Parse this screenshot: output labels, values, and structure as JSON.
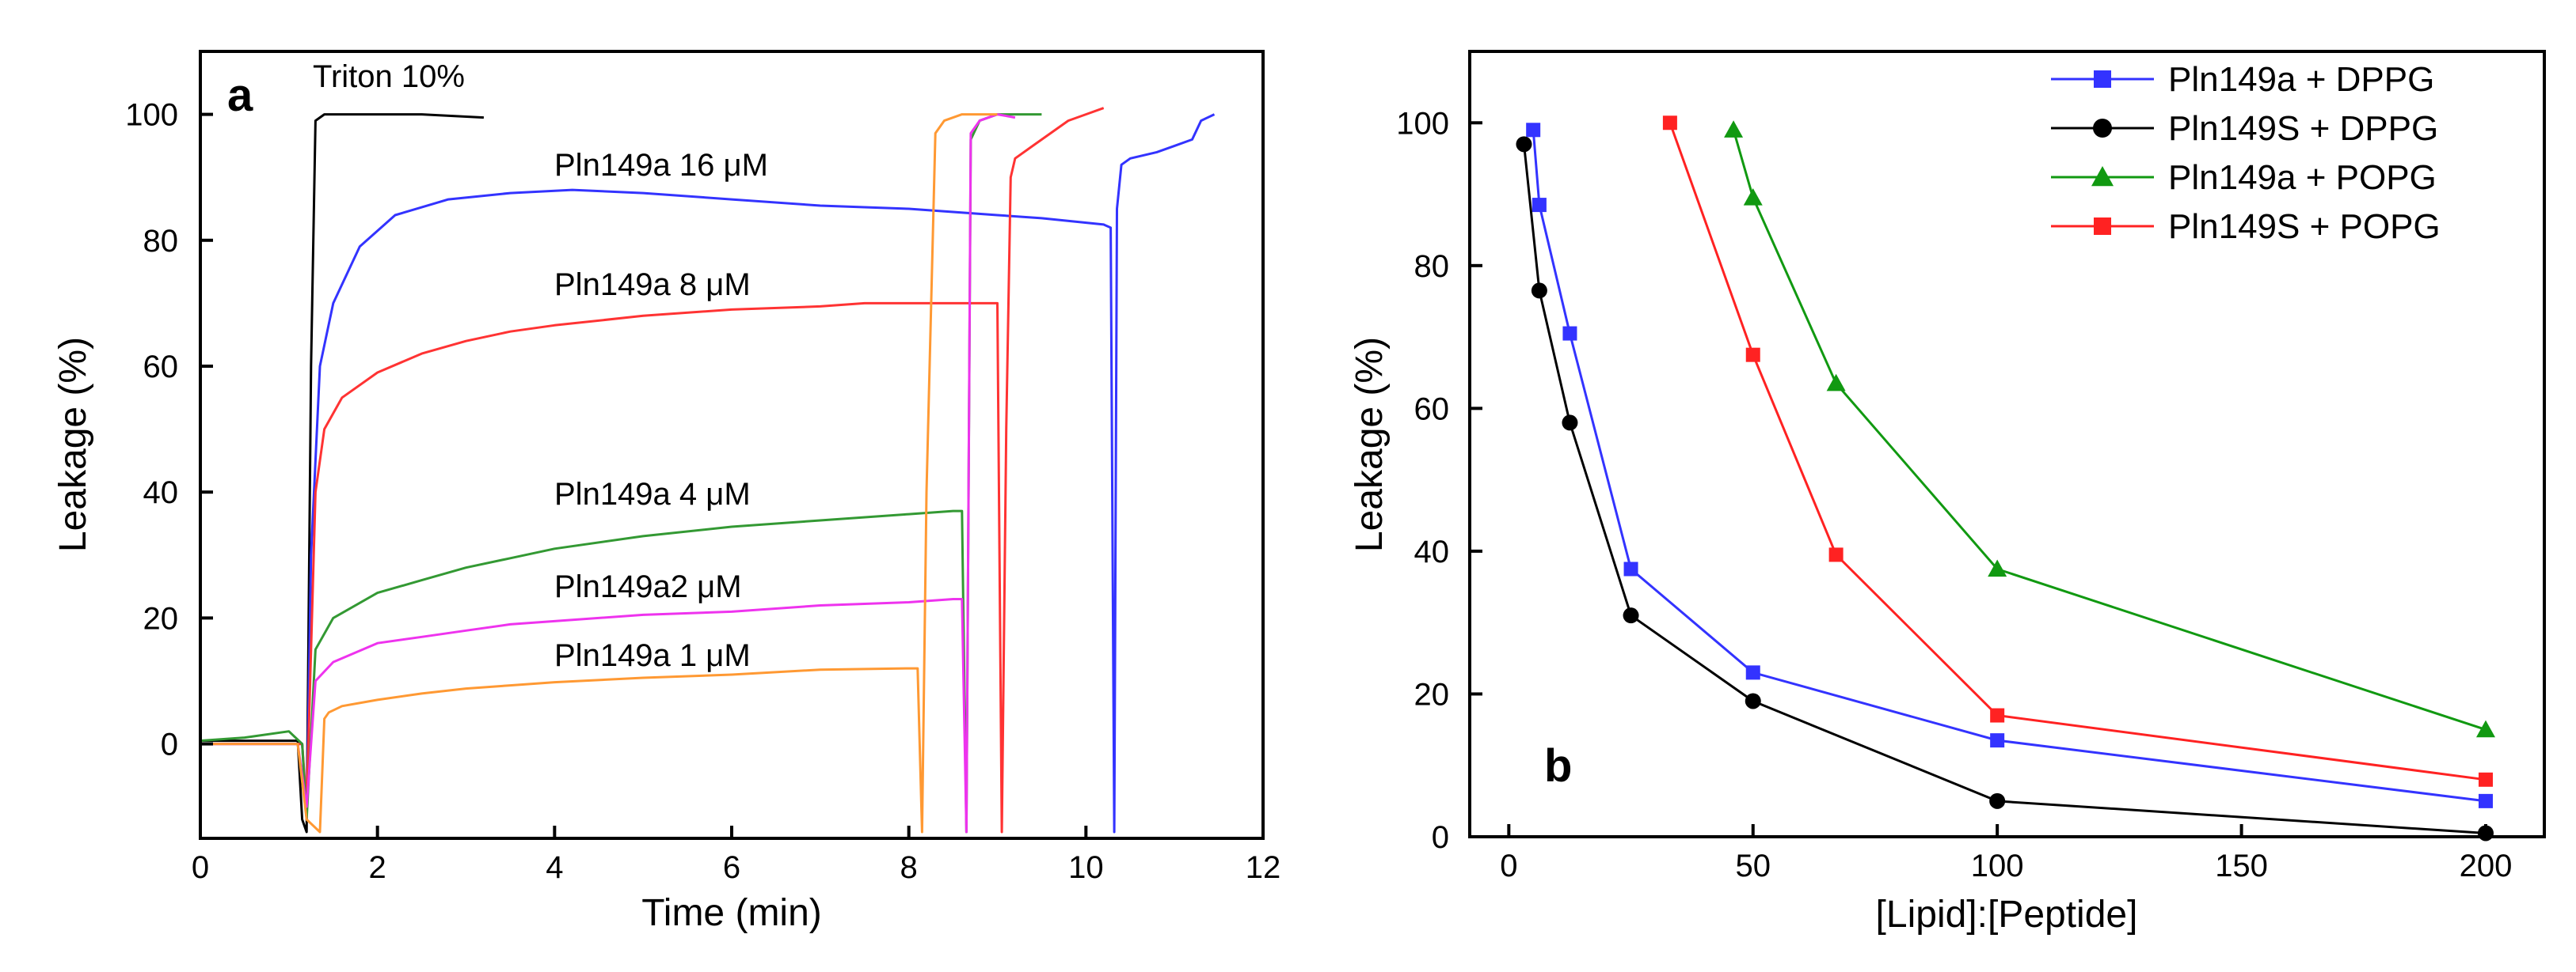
{
  "chart_data": [
    {
      "panel": "a",
      "type": "line",
      "xlabel": "Time (min)",
      "ylabel": "Leakage (%)",
      "xlim": [
        0,
        12
      ],
      "ylim": [
        -15,
        110
      ],
      "xticks": [
        "0",
        "2",
        "4",
        "6",
        "8",
        "10",
        "12"
      ],
      "yticks": [
        "0",
        "20",
        "40",
        "60",
        "80",
        "100"
      ],
      "legend": "none",
      "annotations": [
        "Triton 10%",
        "Pln149a 16 μM",
        "Pln149a 8 μM",
        "Pln149a 4 μM",
        "Pln149a2 μM",
        "Pln149a 1 μM"
      ],
      "series": [
        {
          "name": "Triton 10%",
          "color": "#000000",
          "x": [
            0,
            1.1,
            1.15,
            1.2,
            1.25,
            1.3,
            1.4,
            2,
            2.5,
            3.2
          ],
          "y": [
            0.5,
            0.5,
            -12,
            -14,
            60,
            99,
            100,
            100,
            100,
            99.5
          ]
        },
        {
          "name": "Pln149a 16 μM",
          "color": "#3333ff",
          "x": [
            0,
            1.15,
            1.2,
            1.25,
            1.35,
            1.5,
            1.8,
            2.2,
            2.8,
            3.5,
            4.2,
            5,
            6,
            7,
            8,
            9,
            9.5,
            10.2,
            10.28,
            10.32,
            10.35,
            10.4,
            10.5,
            10.8,
            11,
            11.2,
            11.3,
            11.45
          ],
          "y": [
            0,
            0,
            -12,
            30,
            60,
            70,
            79,
            84,
            86.5,
            87.5,
            88,
            87.5,
            86.5,
            85.5,
            85,
            84,
            83.5,
            82.5,
            82,
            -14,
            85,
            92,
            93,
            94,
            95,
            96,
            99,
            100
          ]
        },
        {
          "name": "Pln149a 8 μM",
          "color": "#ff3333",
          "x": [
            0,
            1.15,
            1.2,
            1.3,
            1.4,
            1.6,
            2,
            2.5,
            3,
            3.5,
            4,
            5,
            6,
            7,
            7.5,
            8,
            8.4,
            8.9,
            9.0,
            9.05,
            9.1,
            9.15,
            9.2,
            9.4,
            9.6,
            9.8,
            10,
            10.2
          ],
          "y": [
            0,
            0,
            -10,
            40,
            50,
            55,
            59,
            62,
            64,
            65.5,
            66.5,
            68,
            69,
            69.5,
            70,
            70,
            70,
            70,
            70,
            -14,
            50,
            90,
            93,
            95,
            97,
            99,
            100,
            101
          ]
        },
        {
          "name": "Pln149a 4 μM",
          "color": "#339933",
          "x": [
            0,
            0.5,
            1.0,
            1.15,
            1.2,
            1.3,
            1.5,
            2,
            2.5,
            3,
            3.5,
            4,
            5,
            6,
            7,
            8,
            8.5,
            8.6,
            8.65,
            8.7,
            8.8,
            9,
            9.2,
            9.5
          ],
          "y": [
            0.5,
            1,
            2,
            0,
            -12,
            15,
            20,
            24,
            26,
            28,
            29.5,
            31,
            33,
            34.5,
            35.5,
            36.5,
            37,
            37,
            -14,
            96,
            99,
            100,
            100,
            100
          ]
        },
        {
          "name": "Pln149a2 μM",
          "color": "#ee33ee",
          "x": [
            0,
            1.1,
            1.2,
            1.3,
            1.5,
            2,
            2.5,
            3,
            3.5,
            4,
            5,
            6,
            7,
            8,
            8.5,
            8.6,
            8.65,
            8.7,
            8.8,
            9,
            9.2
          ],
          "y": [
            0,
            0,
            -10,
            10,
            13,
            16,
            17,
            18,
            19,
            19.5,
            20.5,
            21,
            22,
            22.5,
            23,
            23,
            -14,
            97,
            99,
            100,
            99.5
          ]
        },
        {
          "name": "Pln149a 1 μM",
          "color": "#ff9933",
          "x": [
            0,
            1.1,
            1.2,
            1.35,
            1.4,
            1.45,
            1.6,
            2,
            2.5,
            3,
            3.5,
            4,
            5,
            6,
            7,
            8,
            8.1,
            8.15,
            8.2,
            8.3,
            8.4,
            8.6,
            8.8,
            9.0
          ],
          "y": [
            0,
            0,
            -12,
            -14,
            4,
            5,
            6,
            7,
            8,
            8.8,
            9.3,
            9.8,
            10.5,
            11,
            11.8,
            12,
            12,
            -14,
            40,
            97,
            99,
            100,
            100,
            100
          ]
        }
      ]
    },
    {
      "panel": "b",
      "type": "line",
      "xlabel": "[Lipid]:[Peptide]",
      "ylabel": "Leakage (%)",
      "xlim": [
        -8,
        212
      ],
      "ylim": [
        0,
        110
      ],
      "xticks": [
        "0",
        "50",
        "100",
        "150",
        "200"
      ],
      "yticks": [
        "0",
        "20",
        "40",
        "60",
        "80",
        "100"
      ],
      "legend": "top-right",
      "series": [
        {
          "name": "Pln149a + DPPG",
          "color": "#3333ff",
          "marker": "square",
          "x": [
            5,
            6.25,
            12.5,
            25,
            50,
            100,
            200
          ],
          "y": [
            99,
            88.5,
            70.5,
            37.5,
            23,
            13.5,
            5
          ]
        },
        {
          "name": "Pln149S + DPPG",
          "color": "#000000",
          "marker": "circle",
          "x": [
            3.1,
            6.25,
            12.5,
            25,
            50,
            100,
            200
          ],
          "y": [
            97,
            76.5,
            58,
            31,
            19,
            5,
            0.5
          ]
        },
        {
          "name": "Pln149a + POPG",
          "color": "#119911",
          "marker": "triangle",
          "x": [
            46,
            50,
            67,
            100,
            200
          ],
          "y": [
            99,
            89.5,
            63.5,
            37.5,
            15
          ]
        },
        {
          "name": "Pln149S + POPG",
          "color": "#ff2222",
          "marker": "square",
          "x": [
            33,
            50,
            67,
            100,
            200
          ],
          "y": [
            100,
            67.5,
            39.5,
            17,
            8
          ]
        }
      ]
    }
  ]
}
